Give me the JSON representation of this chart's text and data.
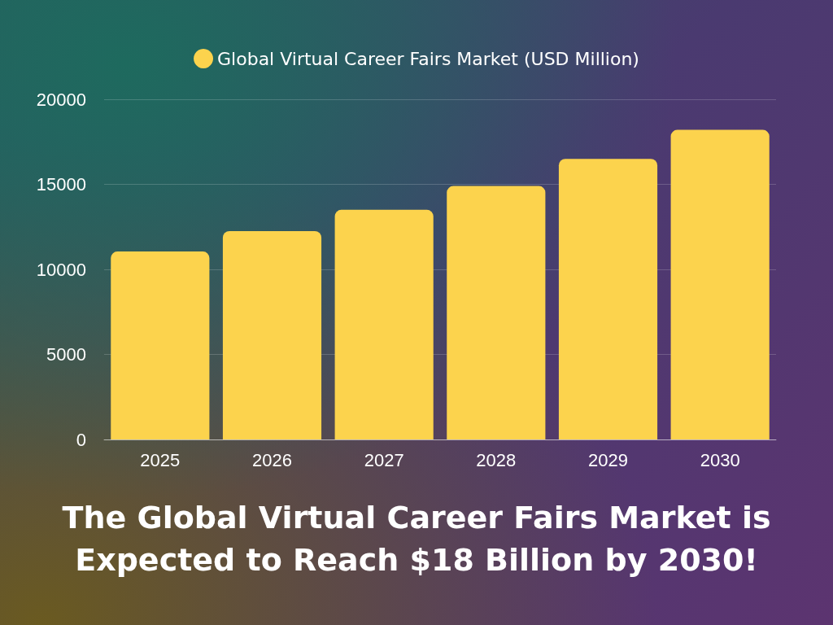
{
  "chart_data": {
    "type": "bar",
    "title": "The Global Virtual Career Fairs Market is Expected to Reach $18 Billion by 2030!",
    "categories": [
      "2025",
      "2026",
      "2027",
      "2028",
      "2029",
      "2030"
    ],
    "series": [
      {
        "name": "Global Virtual Career Fairs Market (USD Million)",
        "color": "#fcd34d",
        "values": [
          11050,
          12250,
          13500,
          14900,
          16500,
          18200
        ]
      }
    ],
    "ylim": [
      0,
      20000
    ],
    "yticks": [
      0,
      5000,
      10000,
      15000,
      20000
    ],
    "grid": "y",
    "legend": "top"
  }
}
